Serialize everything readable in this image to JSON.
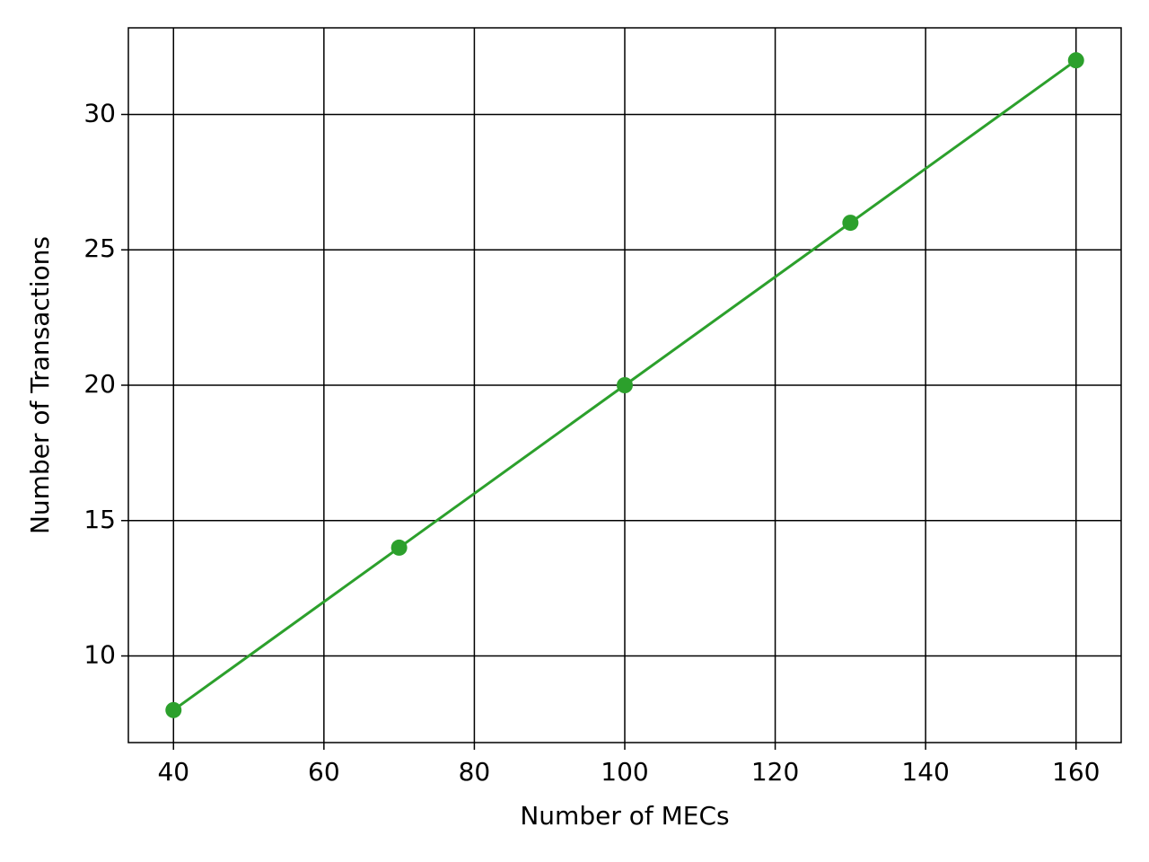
{
  "chart_data": {
    "type": "line",
    "x_label": "Number of MECs",
    "y_label": "Number of Transactions",
    "x": [
      40,
      70,
      100,
      130,
      160
    ],
    "series": [
      {
        "color": "#2ca02c",
        "values": [
          8,
          14,
          20,
          26,
          32
        ]
      }
    ],
    "xlim": [
      34,
      166
    ],
    "xticks": [
      40,
      60,
      80,
      100,
      120,
      140,
      160
    ],
    "ylim": [
      6.8,
      33.2
    ],
    "yticks": [
      10,
      15,
      20,
      25,
      30
    ],
    "grid": true
  }
}
